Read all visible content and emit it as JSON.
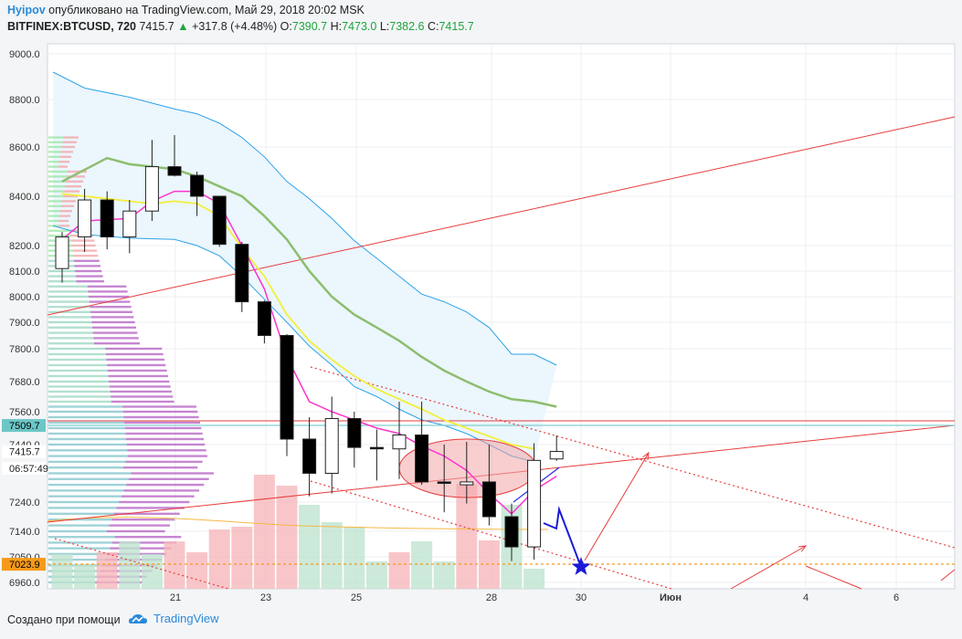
{
  "header": {
    "user": "Hyipov",
    "published": "опубликовано на TradingView.com, Май 29, 2018 20:02 MSK",
    "symbol": "BITFINEX:BTCUSD, 720",
    "last": "7415.7",
    "change_arrow": "▲",
    "change": "+317.8 (+4.48%)",
    "o_label": "O:",
    "o": "7390.7",
    "h_label": "H:",
    "h": "7473.0",
    "l_label": "L:",
    "l": "7382.6",
    "c_label": "C:",
    "c": "7415.7"
  },
  "footer": {
    "created": "Создано при помощи",
    "brand": "TradingView"
  },
  "colors": {
    "up_candle": "#ffffff",
    "down_candle": "#000000",
    "volume_up": "#bfe3cf",
    "volume_down": "#f6b8bc",
    "ema_fast": "#ff33cc",
    "ema_mid": "#f2ef3c",
    "ema_slow": "#8cbe6e",
    "band": "#2ea3e8",
    "trend": "#e63c3c",
    "forecast": "#1a1ad8",
    "price_tag_last": "#6cc6c6",
    "price_tag_target": "#f59a1a"
  },
  "chart_data": {
    "type": "candlestick",
    "y_ticks": [
      "9000.0",
      "8800.0",
      "8600.0",
      "8400.0",
      "8200.0",
      "8100.0",
      "8000.0",
      "7900.0",
      "7800.0",
      "7680.0",
      "7560.0",
      "7440.0",
      "7240.0",
      "7140.0",
      "7050.0",
      "6960.0"
    ],
    "x_ticks": [
      "21",
      "23",
      "25",
      "28",
      "30",
      "Июн",
      "4",
      "6"
    ],
    "price_tags": [
      {
        "label": "7509.7",
        "value": 7509.7,
        "kind": "level"
      },
      {
        "label": "7415.7",
        "value": 7415.7,
        "kind": "last"
      },
      {
        "label": "06:57:49",
        "value": 7345,
        "kind": "countdown"
      },
      {
        "label": "7023.9",
        "value": 7023.9,
        "kind": "target"
      }
    ],
    "candles": [
      {
        "x": 0,
        "o": 8110,
        "h": 8255,
        "l": 8055,
        "c": 8235
      },
      {
        "x": 1,
        "o": 8235,
        "h": 8430,
        "l": 8175,
        "c": 8385
      },
      {
        "x": 2,
        "o": 8385,
        "h": 8420,
        "l": 8185,
        "c": 8235
      },
      {
        "x": 3,
        "o": 8235,
        "h": 8385,
        "l": 8170,
        "c": 8340
      },
      {
        "x": 4,
        "o": 8340,
        "h": 8630,
        "l": 8300,
        "c": 8520
      },
      {
        "x": 5,
        "o": 8520,
        "h": 8650,
        "l": 8480,
        "c": 8485
      },
      {
        "x": 6,
        "o": 8485,
        "h": 8500,
        "l": 8320,
        "c": 8400
      },
      {
        "x": 7,
        "o": 8400,
        "h": 8400,
        "l": 8195,
        "c": 8205
      },
      {
        "x": 8,
        "o": 8205,
        "h": 8215,
        "l": 7940,
        "c": 7980
      },
      {
        "x": 9,
        "o": 7980,
        "h": 7985,
        "l": 7820,
        "c": 7850
      },
      {
        "x": 10,
        "o": 7850,
        "h": 7855,
        "l": 7400,
        "c": 7460
      },
      {
        "x": 11,
        "o": 7460,
        "h": 7540,
        "l": 7260,
        "c": 7340
      },
      {
        "x": 12,
        "o": 7340,
        "h": 7620,
        "l": 7270,
        "c": 7535
      },
      {
        "x": 13,
        "o": 7535,
        "h": 7560,
        "l": 7360,
        "c": 7430
      },
      {
        "x": 14,
        "o": 7430,
        "h": 7495,
        "l": 7315,
        "c": 7425
      },
      {
        "x": 15,
        "o": 7425,
        "h": 7600,
        "l": 7320,
        "c": 7475
      },
      {
        "x": 16,
        "o": 7475,
        "h": 7600,
        "l": 7300,
        "c": 7310
      },
      {
        "x": 17,
        "o": 7310,
        "h": 7440,
        "l": 7205,
        "c": 7305
      },
      {
        "x": 18,
        "o": 7300,
        "h": 7450,
        "l": 7235,
        "c": 7310
      },
      {
        "x": 19,
        "o": 7310,
        "h": 7440,
        "l": 7160,
        "c": 7190
      },
      {
        "x": 20,
        "o": 7190,
        "h": 7235,
        "l": 7035,
        "c": 7085
      },
      {
        "x": 21,
        "o": 7085,
        "h": 7445,
        "l": 7040,
        "c": 7385
      },
      {
        "x": 22,
        "o": 7390,
        "h": 7473,
        "l": 7383,
        "c": 7416
      }
    ],
    "volume": [
      {
        "x": 0,
        "v": 38,
        "up": true
      },
      {
        "x": 1,
        "v": 27,
        "up": true
      },
      {
        "x": 2,
        "v": 40,
        "up": false
      },
      {
        "x": 3,
        "v": 52,
        "up": true
      },
      {
        "x": 4,
        "v": 38,
        "up": true
      },
      {
        "x": 5,
        "v": 52,
        "up": false
      },
      {
        "x": 6,
        "v": 40,
        "up": false
      },
      {
        "x": 7,
        "v": 65,
        "up": false
      },
      {
        "x": 8,
        "v": 68,
        "up": false
      },
      {
        "x": 9,
        "v": 125,
        "up": false
      },
      {
        "x": 10,
        "v": 113,
        "up": false
      },
      {
        "x": 11,
        "v": 92,
        "up": true
      },
      {
        "x": 12,
        "v": 73,
        "up": true
      },
      {
        "x": 13,
        "v": 68,
        "up": true
      },
      {
        "x": 14,
        "v": 30,
        "up": true
      },
      {
        "x": 15,
        "v": 40,
        "up": false
      },
      {
        "x": 16,
        "v": 52,
        "up": true
      },
      {
        "x": 17,
        "v": 30,
        "up": true
      },
      {
        "x": 18,
        "v": 115,
        "up": false
      },
      {
        "x": 19,
        "v": 53,
        "up": false
      },
      {
        "x": 20,
        "v": 92,
        "up": true
      },
      {
        "x": 21,
        "v": 22,
        "up": true
      }
    ],
    "ema_fast": [
      [
        0,
        8225
      ],
      [
        1,
        8300
      ],
      [
        2,
        8305
      ],
      [
        3,
        8310
      ],
      [
        4,
        8380
      ],
      [
        5,
        8420
      ],
      [
        6,
        8420
      ],
      [
        7,
        8370
      ],
      [
        8,
        8200
      ],
      [
        9,
        8030
      ],
      [
        10,
        7770
      ],
      [
        11,
        7600
      ],
      [
        12,
        7560
      ],
      [
        13,
        7530
      ],
      [
        14,
        7500
      ],
      [
        15,
        7480
      ],
      [
        16,
        7435
      ],
      [
        17,
        7400
      ],
      [
        18,
        7350
      ],
      [
        19,
        7270
      ],
      [
        20,
        7200
      ],
      [
        21,
        7280
      ],
      [
        22,
        7330
      ]
    ],
    "ema_mid": [
      [
        0,
        8410
      ],
      [
        2,
        8390
      ],
      [
        4,
        8370
      ],
      [
        5,
        8380
      ],
      [
        6,
        8370
      ],
      [
        7,
        8320
      ],
      [
        8,
        8190
      ],
      [
        9,
        8080
      ],
      [
        10,
        7930
      ],
      [
        11,
        7830
      ],
      [
        12,
        7760
      ],
      [
        13,
        7700
      ],
      [
        14,
        7650
      ],
      [
        15,
        7610
      ],
      [
        16,
        7570
      ],
      [
        17,
        7530
      ],
      [
        18,
        7500
      ],
      [
        19,
        7470
      ],
      [
        20,
        7440
      ],
      [
        21,
        7425
      ]
    ],
    "ema_slow": [
      [
        0,
        8460
      ],
      [
        2,
        8555
      ],
      [
        3,
        8530
      ],
      [
        4,
        8520
      ],
      [
        5,
        8510
      ],
      [
        6,
        8480
      ],
      [
        7,
        8440
      ],
      [
        8,
        8400
      ],
      [
        9,
        8320
      ],
      [
        10,
        8225
      ],
      [
        11,
        8100
      ],
      [
        12,
        8000
      ],
      [
        13,
        7930
      ],
      [
        14,
        7880
      ],
      [
        15,
        7830
      ],
      [
        16,
        7770
      ],
      [
        17,
        7720
      ],
      [
        18,
        7680
      ],
      [
        19,
        7640
      ],
      [
        20,
        7610
      ],
      [
        21,
        7600
      ],
      [
        22,
        7580
      ]
    ],
    "band_upper": [
      [
        -0.4,
        8920
      ],
      [
        1,
        8850
      ],
      [
        3,
        8810
      ],
      [
        5,
        8760
      ],
      [
        6,
        8740
      ],
      [
        7,
        8700
      ],
      [
        8,
        8640
      ],
      [
        9,
        8560
      ],
      [
        10,
        8460
      ],
      [
        11,
        8390
      ],
      [
        12,
        8310
      ],
      [
        13,
        8220
      ],
      [
        14,
        8150
      ],
      [
        15,
        8080
      ],
      [
        16,
        8010
      ],
      [
        17,
        7980
      ],
      [
        18,
        7940
      ],
      [
        19,
        7880
      ],
      [
        20,
        7780
      ],
      [
        21,
        7780
      ],
      [
        22,
        7740
      ]
    ],
    "band_lower": [
      [
        -0.4,
        8280
      ],
      [
        1,
        8245
      ],
      [
        3,
        8230
      ],
      [
        5,
        8225
      ],
      [
        6,
        8200
      ],
      [
        7,
        8160
      ],
      [
        8,
        8080
      ],
      [
        9,
        7990
      ],
      [
        10,
        7900
      ],
      [
        11,
        7810
      ],
      [
        12,
        7740
      ],
      [
        13,
        7660
      ],
      [
        14,
        7620
      ],
      [
        15,
        7570
      ],
      [
        16,
        7530
      ],
      [
        17,
        7510
      ],
      [
        18,
        7480
      ],
      [
        19,
        7440
      ],
      [
        20,
        7400
      ],
      [
        21,
        7380
      ]
    ],
    "forecast_path": [
      [
        20.6,
        7140
      ],
      [
        21,
        7132
      ],
      [
        21.2,
        7185
      ],
      [
        21.8,
        7023
      ],
      [
        23.7,
        7400
      ]
    ]
  }
}
